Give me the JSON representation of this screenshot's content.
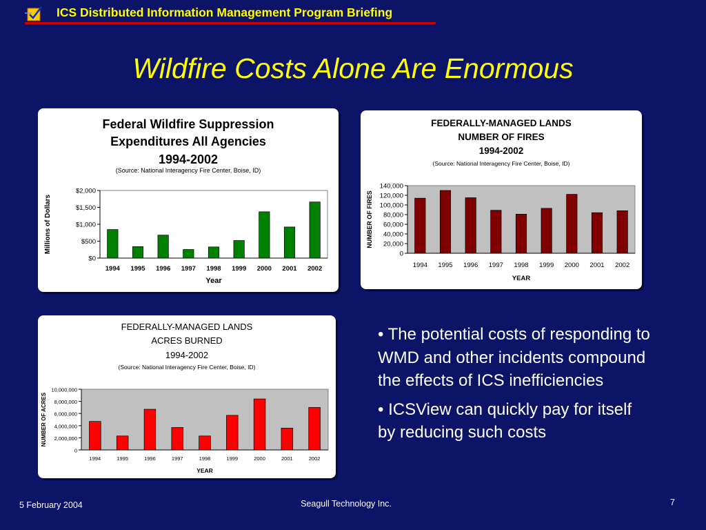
{
  "header": {
    "title": "ICS Distributed Information Management Program Briefing",
    "logo_icon": "seagull-logo-icon"
  },
  "slide_title": "Wildfire Costs Alone Are Enormous",
  "bullets": [
    "• The potential costs of responding to WMD and other incidents compound the effects of ICS inefficiencies",
    "•  ICSView can quickly pay for itself by reducing such costs"
  ],
  "footer": {
    "date": "5 February  2004",
    "company": "Seagull Technology Inc.",
    "page": "7"
  },
  "chart_data": [
    {
      "type": "bar",
      "title_lines": [
        "Federal Wildfire Suppression",
        "Expenditures All Agencies",
        "1994-2002"
      ],
      "source": "(Source: National Interagency Fire Center, Boise, ID)",
      "categories": [
        "1994",
        "1995",
        "1996",
        "1997",
        "1998",
        "1999",
        "2000",
        "2001",
        "2002"
      ],
      "values": [
        845,
        340,
        680,
        255,
        330,
        520,
        1370,
        920,
        1660
      ],
      "ylim": [
        0,
        2000
      ],
      "yticks": [
        0,
        500,
        1000,
        1500,
        2000
      ],
      "ytick_labels": [
        "$0",
        "$500",
        "$1,000",
        "$1,500",
        "$2,000"
      ],
      "xlabel": "Year",
      "ylabel": "Millions of Dollars",
      "bar_color": "#008000",
      "grid": false
    },
    {
      "type": "bar",
      "title_lines": [
        "FEDERALLY-MANAGED LANDS",
        "NUMBER OF FIRES",
        "1994-2002"
      ],
      "source": "(Source: National Interagency Fire Center, Boise, ID)",
      "categories": [
        "1994",
        "1995",
        "1996",
        "1997",
        "1998",
        "1999",
        "2000",
        "2001",
        "2002"
      ],
      "values": [
        114000,
        130000,
        115000,
        89000,
        81000,
        93000,
        122000,
        84000,
        88000
      ],
      "ylim": [
        0,
        140000
      ],
      "yticks": [
        0,
        20000,
        40000,
        60000,
        80000,
        100000,
        120000,
        140000
      ],
      "ytick_labels": [
        "0",
        "20,000",
        "40,000",
        "60,000",
        "80,000",
        "100,000",
        "120,000",
        "140,000"
      ],
      "xlabel": "YEAR",
      "ylabel": "NUMBER OF FIRES",
      "bar_color": "#800000",
      "grid": false
    },
    {
      "type": "bar",
      "title_lines": [
        "FEDERALLY-MANAGED LANDS",
        "ACRES BURNED",
        "1994-2002"
      ],
      "source": "(Source: National Interagency Fire Center, Boise, ID)",
      "categories": [
        "1994",
        "1995",
        "1996",
        "1997",
        "1998",
        "1999",
        "2000",
        "2001",
        "2002"
      ],
      "values": [
        4700000,
        2300000,
        6700000,
        3700000,
        2300000,
        5700000,
        8400000,
        3600000,
        7000000
      ],
      "ylim": [
        0,
        10000000
      ],
      "yticks": [
        0,
        2000000,
        4000000,
        6000000,
        8000000,
        10000000
      ],
      "ytick_labels": [
        "0",
        "2,000,000",
        "4,000,000",
        "6,000,000",
        "8,000,000",
        "10,000,000"
      ],
      "xlabel": "YEAR",
      "ylabel": "NUMBER OF ACRES",
      "bar_color": "#ff0000",
      "grid": false
    }
  ]
}
